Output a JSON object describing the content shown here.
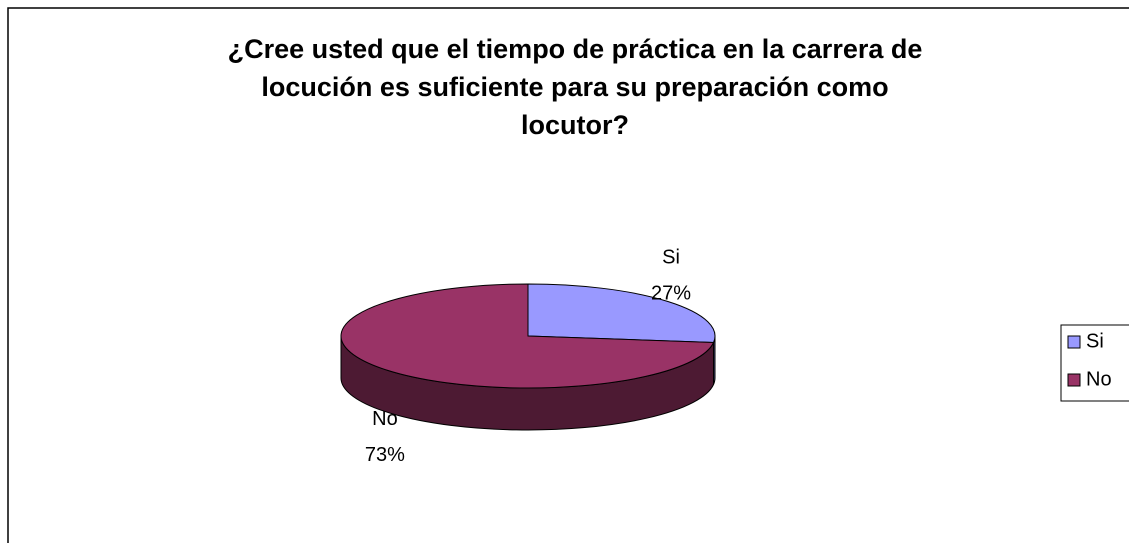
{
  "chart_data": {
    "type": "pie",
    "title": "¿Cree usted que el  tiempo de práctica en la carrera de locución es suficiente para su preparación como locutor?",
    "categories": [
      "Si",
      "No"
    ],
    "values": [
      27,
      73
    ],
    "value_labels": [
      "27%",
      "73%"
    ],
    "colors": [
      "#9999ff",
      "#993366"
    ],
    "legend": "right"
  }
}
